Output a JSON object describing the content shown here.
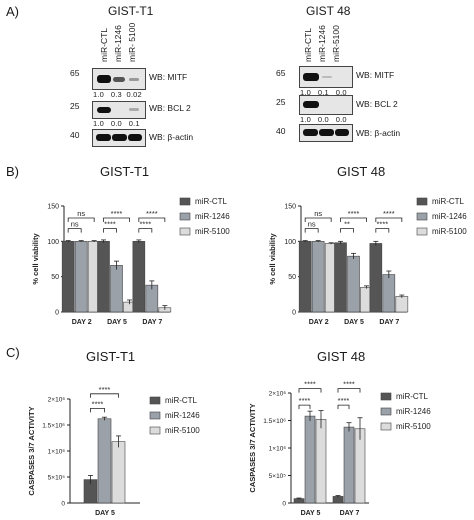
{
  "panel_a": {
    "letter": "A)",
    "left": {
      "title": "GIST-T1",
      "lanes": [
        "miR-CTL",
        "miR-1246",
        "miR- 5100"
      ],
      "blots": [
        {
          "mw": "65",
          "wb": "WB: MITF",
          "quant": "1.0   0.3  0.02"
        },
        {
          "mw": "25",
          "wb": "WB: BCL 2",
          "quant": "1.0   0.0   0.1"
        },
        {
          "mw": "40",
          "wb": "WB: β-actin",
          "quant": ""
        }
      ]
    },
    "right": {
      "title": "GIST 48",
      "lanes": [
        "miR-CTL",
        "miR-1246",
        "miR-5100"
      ],
      "blots": [
        {
          "mw": "65",
          "wb": "WB: MITF",
          "quant": "1.0   0.1   0.0"
        },
        {
          "mw": "25",
          "wb": "WB: BCL 2",
          "quant": "1.0   0.0   0.0"
        },
        {
          "mw": "40",
          "wb": "WB: β-actin",
          "quant": ""
        }
      ]
    }
  },
  "panel_b": {
    "letter": "B)"
  },
  "panel_c": {
    "letter": "C)"
  },
  "colors": {
    "ctl": "#555555",
    "m1246": "#9aa1a8",
    "m5100": "#dcdcdc"
  },
  "chart_data": [
    {
      "type": "bar",
      "title": "GIST-T1",
      "ylabel": "% cell viability",
      "ylim": [
        0,
        150
      ],
      "yticks": [
        "0",
        "50",
        "100",
        "150"
      ],
      "categories": [
        "DAY 2",
        "DAY 5",
        "DAY 7"
      ],
      "series": [
        {
          "name": "miR-CTL",
          "values": [
            100,
            100,
            100
          ],
          "errors": [
            1,
            2,
            2
          ]
        },
        {
          "name": "miR-1246",
          "values": [
            100,
            66,
            38
          ],
          "errors": [
            1,
            6,
            6
          ]
        },
        {
          "name": "miR-5100",
          "values": [
            100,
            14,
            6
          ],
          "errors": [
            1,
            3,
            3
          ]
        }
      ],
      "annotations": [
        {
          "text": "ns",
          "group": 0,
          "from": 0,
          "to": 1,
          "level": 118
        },
        {
          "text": "ns",
          "group": 0,
          "from": 0,
          "to": 2,
          "level": 133
        },
        {
          "text": "****",
          "group": 1,
          "from": 0,
          "to": 1,
          "level": 118
        },
        {
          "text": "****",
          "group": 1,
          "from": 0,
          "to": 2,
          "level": 133
        },
        {
          "text": "****",
          "group": 2,
          "from": 0,
          "to": 1,
          "level": 118
        },
        {
          "text": "****",
          "group": 2,
          "from": 0,
          "to": 2,
          "level": 133
        }
      ]
    },
    {
      "type": "bar",
      "title": "GIST 48",
      "ylabel": "% cell viability",
      "ylim": [
        0,
        150
      ],
      "yticks": [
        "0",
        "50",
        "100",
        "150"
      ],
      "categories": [
        "DAY 2",
        "DAY 5",
        "DAY 7"
      ],
      "series": [
        {
          "name": "miR-CTL",
          "values": [
            100,
            98,
            97
          ],
          "errors": [
            1,
            2,
            3
          ]
        },
        {
          "name": "miR-1246",
          "values": [
            100,
            79,
            53
          ],
          "errors": [
            1,
            4,
            5
          ]
        },
        {
          "name": "miR-5100",
          "values": [
            97,
            35,
            22
          ],
          "errors": [
            1,
            2,
            2
          ]
        }
      ],
      "annotations": [
        {
          "text": "ns",
          "group": 0,
          "from": 0,
          "to": 1,
          "level": 118
        },
        {
          "text": "ns",
          "group": 0,
          "from": 0,
          "to": 2,
          "level": 133
        },
        {
          "text": "**",
          "group": 1,
          "from": 0,
          "to": 1,
          "level": 118
        },
        {
          "text": "****",
          "group": 1,
          "from": 0,
          "to": 2,
          "level": 133
        },
        {
          "text": "****",
          "group": 2,
          "from": 0,
          "to": 1,
          "level": 118
        },
        {
          "text": "****",
          "group": 2,
          "from": 0,
          "to": 2,
          "level": 133
        }
      ]
    },
    {
      "type": "bar",
      "title": "GIST-T1",
      "ylabel": "CASPASES 3/7 ACTIVITY",
      "ylim": [
        0,
        2000000
      ],
      "yticks": [
        "0",
        "5×10⁵",
        "1×10⁶",
        "1.5×10⁶",
        "2×10⁶"
      ],
      "categories": [
        "DAY 5"
      ],
      "series": [
        {
          "name": "miR-CTL",
          "values": [
            450000
          ],
          "errors": [
            80000
          ]
        },
        {
          "name": "miR-1246",
          "values": [
            1620000
          ],
          "errors": [
            30000
          ]
        },
        {
          "name": "miR-5100",
          "values": [
            1180000
          ],
          "errors": [
            110000
          ]
        }
      ],
      "annotations": [
        {
          "text": "****",
          "group": 0,
          "from": 0,
          "to": 1,
          "level": 1820000
        },
        {
          "text": "****",
          "group": 0,
          "from": 0,
          "to": 2,
          "level": 2100000
        }
      ]
    },
    {
      "type": "bar",
      "title": "GIST 48",
      "ylabel": "CASPASES 3/7 ACTIVITY",
      "ylim": [
        0,
        2000000
      ],
      "yticks": [
        "0",
        "5×10⁵",
        "1×10⁶",
        "1.5×10⁶",
        "2×10⁶"
      ],
      "categories": [
        "DAY 5",
        "DAY 7"
      ],
      "series": [
        {
          "name": "miR-CTL",
          "values": [
            80000,
            120000
          ],
          "errors": [
            10000,
            15000
          ]
        },
        {
          "name": "miR-1246",
          "values": [
            1580000,
            1380000
          ],
          "errors": [
            90000,
            80000
          ]
        },
        {
          "name": "miR-5100",
          "values": [
            1520000,
            1350000
          ],
          "errors": [
            160000,
            200000
          ]
        }
      ],
      "annotations": [
        {
          "text": "****",
          "group": 0,
          "from": 0,
          "to": 1,
          "level": 1780000
        },
        {
          "text": "****",
          "group": 0,
          "from": 0,
          "to": 2,
          "level": 2080000
        },
        {
          "text": "****",
          "group": 1,
          "from": 0,
          "to": 1,
          "level": 1780000
        },
        {
          "text": "****",
          "group": 1,
          "from": 0,
          "to": 2,
          "level": 2080000
        }
      ]
    }
  ]
}
